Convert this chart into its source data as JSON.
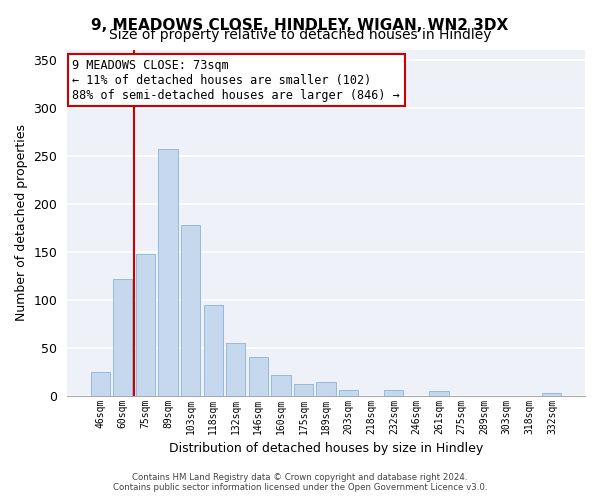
{
  "title": "9, MEADOWS CLOSE, HINDLEY, WIGAN, WN2 3DX",
  "subtitle": "Size of property relative to detached houses in Hindley",
  "xlabel": "Distribution of detached houses by size in Hindley",
  "ylabel": "Number of detached properties",
  "bar_labels": [
    "46sqm",
    "60sqm",
    "75sqm",
    "89sqm",
    "103sqm",
    "118sqm",
    "132sqm",
    "146sqm",
    "160sqm",
    "175sqm",
    "189sqm",
    "203sqm",
    "218sqm",
    "232sqm",
    "246sqm",
    "261sqm",
    "275sqm",
    "289sqm",
    "303sqm",
    "318sqm",
    "332sqm"
  ],
  "bar_values": [
    25,
    122,
    148,
    257,
    178,
    94,
    55,
    40,
    22,
    12,
    14,
    6,
    0,
    6,
    0,
    5,
    0,
    0,
    0,
    0,
    3
  ],
  "bar_color": "#c5d8ee",
  "bar_edge_color": "#8ab4d8",
  "vline_x_index": 2,
  "vline_color": "#cc0000",
  "annotation_line1": "9 MEADOWS CLOSE: 73sqm",
  "annotation_line2": "← 11% of detached houses are smaller (102)",
  "annotation_line3": "88% of semi-detached houses are larger (846) →",
  "annotation_box_color": "white",
  "annotation_box_edge_color": "#cc0000",
  "ylim": [
    0,
    360
  ],
  "yticks": [
    0,
    50,
    100,
    150,
    200,
    250,
    300,
    350
  ],
  "footer_line1": "Contains HM Land Registry data © Crown copyright and database right 2024.",
  "footer_line2": "Contains public sector information licensed under the Open Government Licence v3.0.",
  "bg_color": "#ffffff",
  "plot_bg_color": "#eef2f8",
  "grid_color": "#ffffff",
  "title_fontsize": 11,
  "subtitle_fontsize": 10,
  "ylabel_fontsize": 9,
  "xlabel_fontsize": 9
}
